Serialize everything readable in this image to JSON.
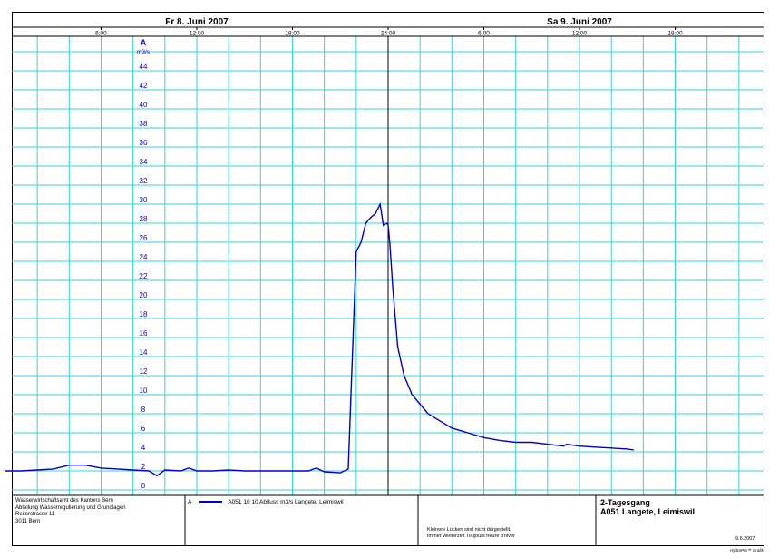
{
  "chart_data": {
    "type": "line",
    "day_labels": [
      "Fr  8. Juni  2007",
      "Sa  9. Juni  2007"
    ],
    "hour_tick_labels": [
      "6:00",
      "12:00",
      "18:00",
      "24:00",
      "6:00",
      "12:00",
      "18:00"
    ],
    "x_range_hours": [
      0,
      48
    ],
    "axis_letter": "A",
    "y_unit": "m3/s",
    "ylim": [
      0,
      46
    ],
    "y_tick_labels": [
      "0",
      "2",
      "4",
      "6",
      "8",
      "10",
      "12",
      "14",
      "16",
      "18",
      "20",
      "22",
      "24",
      "26",
      "28",
      "30",
      "32",
      "34",
      "36",
      "38",
      "40",
      "42",
      "44"
    ],
    "grid": true,
    "series": [
      {
        "name": "A051 10 10  Abfluss m3/s Langete, Leimiswil",
        "color": "#0000cc",
        "x_hours": [
          0,
          1,
          2,
          3,
          4,
          5,
          6,
          7,
          8,
          9,
          9.5,
          10,
          11,
          11.5,
          12,
          13,
          14,
          15,
          16,
          17,
          18,
          19,
          19.5,
          20,
          21,
          21.5,
          22,
          22.3,
          22.6,
          22.9,
          23.2,
          23.5,
          23.7,
          23.9,
          24.0,
          24.1,
          24.3,
          24.6,
          25,
          25.5,
          26,
          26.5,
          27,
          28,
          29,
          30,
          31,
          32,
          33,
          34,
          35,
          35.2,
          36,
          37,
          38,
          39,
          39.4
        ],
        "values": [
          2.0,
          2.0,
          2.1,
          2.2,
          2.6,
          2.6,
          2.3,
          2.2,
          2.1,
          2.0,
          1.5,
          2.1,
          2.0,
          2.3,
          2.0,
          2.0,
          2.1,
          2.0,
          2.0,
          2.0,
          2.0,
          2.0,
          2.3,
          1.9,
          1.8,
          2.2,
          25.0,
          26.0,
          28.0,
          28.6,
          29.0,
          30.0,
          27.8,
          28.0,
          27.8,
          26.0,
          21.0,
          15.0,
          12.0,
          10.0,
          9.0,
          8.0,
          7.5,
          6.5,
          6.0,
          5.5,
          5.2,
          5.0,
          5.0,
          4.8,
          4.6,
          4.8,
          4.6,
          4.5,
          4.4,
          4.3,
          4.2
        ]
      }
    ]
  },
  "footer": {
    "agency_lines": [
      "Wasserwirtschaftsamt des Kantons Bern",
      "Abteilung Wasserregulierung und Grundlagen",
      "Reiterstrasse 11",
      "3011 Bern"
    ],
    "legend_axis": "A",
    "legend_label": "A051  10 10  Abfluss m3/s Langete, Leimiswil",
    "note_lines": [
      "Kleinere Lücken sind nicht dargestellt.",
      "Immer Winterzeit Toujours heure d'hiver"
    ],
    "title_lines": [
      "2-Tagesgang",
      "A051 Langete, Leimiswil"
    ],
    "print_date": "9.6.2007",
    "credit": "HydroPro™ Grafik"
  }
}
